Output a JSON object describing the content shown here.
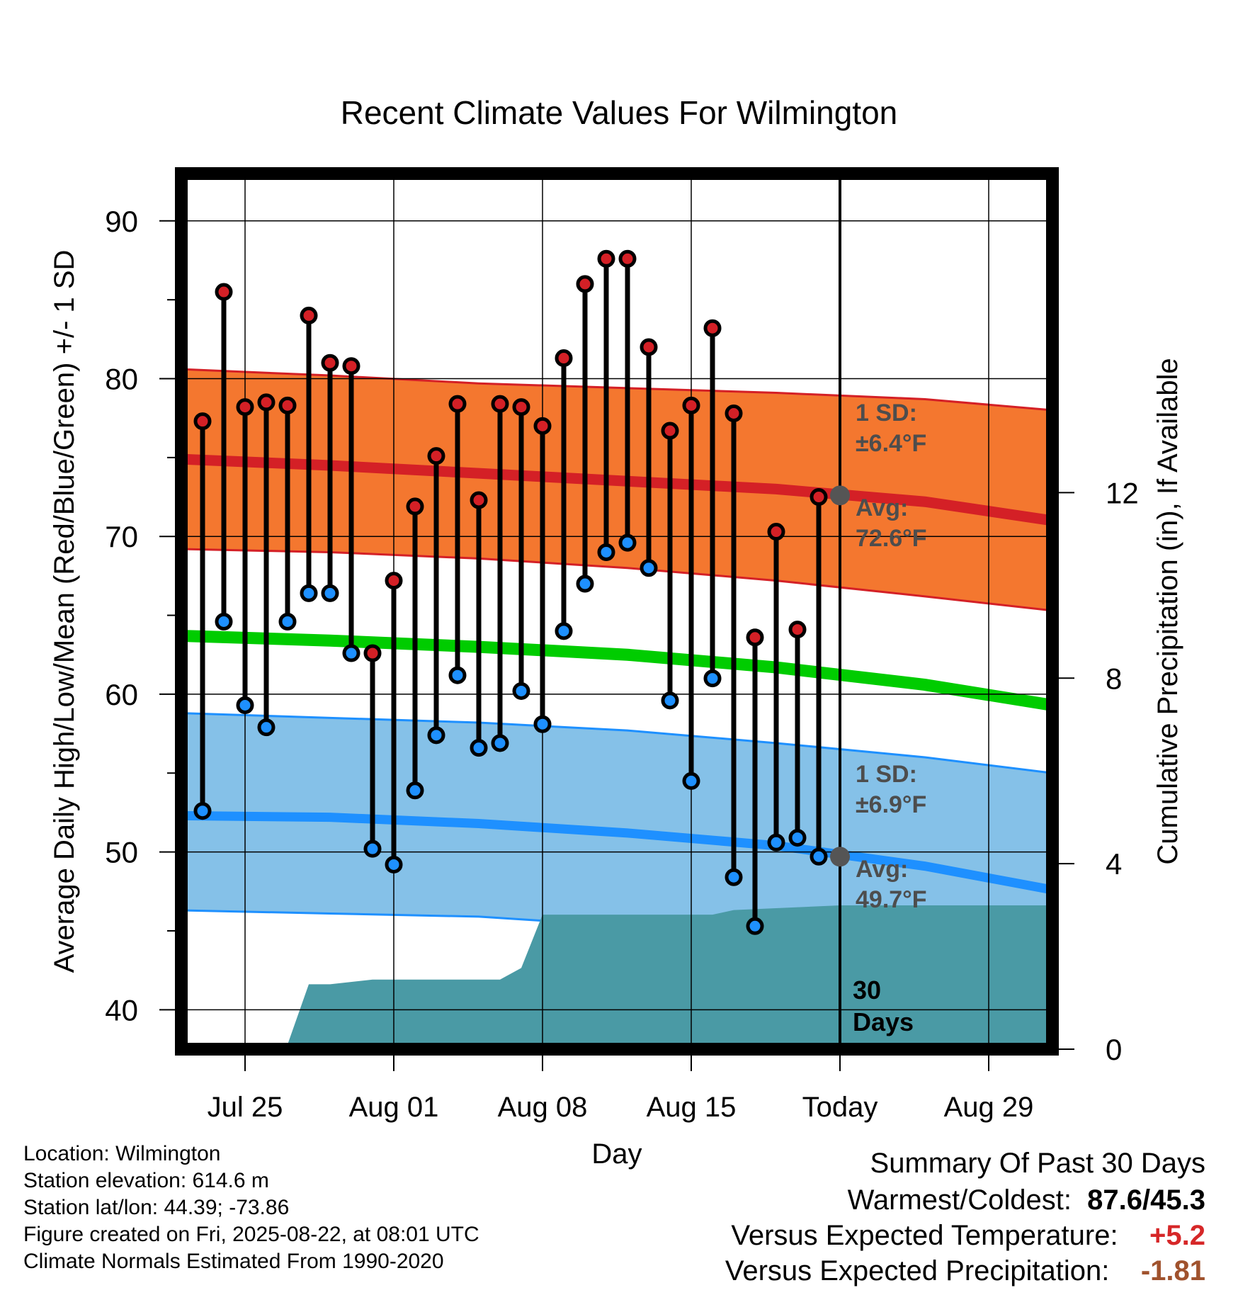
{
  "title": "Recent Climate Values For Wilmington",
  "info": {
    "location": "Location: Wilmington",
    "elevation": "Station elevation: 614.6 m",
    "latlon": "Station lat/lon: 44.39; -73.86",
    "created": "Figure created on Fri, 2025-08-22, at 08:01 UTC",
    "normals": "Climate Normals Estimated From 1990-2020"
  },
  "summary": {
    "heading": "Summary Of Past 30 Days",
    "warm_cold_label": "Warmest/Coldest:",
    "warm_cold_value": "87.6/45.3",
    "temp_label": "Versus Expected Temperature:",
    "temp_value": "+5.2",
    "precip_label": "Versus Expected Precipitation:",
    "precip_value": "-1.81"
  },
  "colors": {
    "high_band": "#f4772f",
    "high_mean": "#d42026",
    "low_band": "#85c1e8",
    "low_mean": "#1e90ff",
    "mean_line": "#00cc00",
    "precip": "#4a9aa5",
    "high_dot": "#d42026",
    "low_dot": "#1e90ff"
  },
  "chart_data": {
    "type": "line",
    "xlabel": "Day",
    "ylabel": "Average Daily High/Low/Mean (Red/Blue/Green) +/- 1 SD",
    "ylabel_right": "Cumulative Precipitation (in), If Available",
    "ylim": [
      37.5,
      93
    ],
    "ylim_right": [
      0,
      18.88
    ],
    "yticks": [
      40,
      50,
      60,
      70,
      80,
      90
    ],
    "yticks_right": [
      0,
      4,
      8,
      12
    ],
    "xlim": [
      "2025-07-22",
      "2025-09-01"
    ],
    "xticks": [
      {
        "date": "2025-07-25",
        "label": "Jul 25"
      },
      {
        "date": "2025-08-01",
        "label": "Aug 01"
      },
      {
        "date": "2025-08-08",
        "label": "Aug 08"
      },
      {
        "date": "2025-08-15",
        "label": "Aug 15"
      },
      {
        "date": "2025-08-22",
        "label": "Today"
      },
      {
        "date": "2025-08-29",
        "label": "Aug 29"
      }
    ],
    "today": "2025-08-22",
    "days_label": "30\nDays",
    "daily_obs": {
      "dates": [
        "2025-07-23",
        "2025-07-24",
        "2025-07-25",
        "2025-07-26",
        "2025-07-27",
        "2025-07-28",
        "2025-07-29",
        "2025-07-30",
        "2025-07-31",
        "2025-08-01",
        "2025-08-02",
        "2025-08-03",
        "2025-08-04",
        "2025-08-05",
        "2025-08-06",
        "2025-08-07",
        "2025-08-08",
        "2025-08-09",
        "2025-08-10",
        "2025-08-11",
        "2025-08-12",
        "2025-08-13",
        "2025-08-14",
        "2025-08-15",
        "2025-08-16",
        "2025-08-17",
        "2025-08-18",
        "2025-08-19",
        "2025-08-20",
        "2025-08-21"
      ],
      "high": [
        77.3,
        85.5,
        78.2,
        78.5,
        78.3,
        84.0,
        81.0,
        80.8,
        62.6,
        67.2,
        71.9,
        75.1,
        78.4,
        72.3,
        78.4,
        78.2,
        77.0,
        81.3,
        86.0,
        87.6,
        87.6,
        82.0,
        76.7,
        78.3,
        83.2,
        77.8,
        63.6,
        70.3,
        64.1,
        72.5
      ],
      "low": [
        52.6,
        64.6,
        59.3,
        57.9,
        64.6,
        66.4,
        66.4,
        62.6,
        50.2,
        49.2,
        53.9,
        57.4,
        61.2,
        56.6,
        56.9,
        60.2,
        58.1,
        64.0,
        67.0,
        69.0,
        69.6,
        68.0,
        59.6,
        54.5,
        61.0,
        48.4,
        45.3,
        50.6,
        50.9,
        49.7
      ]
    },
    "normals": {
      "dates": [
        "2025-07-22",
        "2025-07-29",
        "2025-08-05",
        "2025-08-12",
        "2025-08-19",
        "2025-08-26",
        "2025-09-01"
      ],
      "high_mean": [
        74.9,
        74.5,
        74.0,
        73.5,
        73.0,
        72.2,
        71.0
      ],
      "high_upper": [
        80.6,
        80.2,
        79.7,
        79.4,
        79.1,
        78.7,
        78.0
      ],
      "high_lower": [
        69.2,
        69.0,
        68.6,
        68.0,
        67.2,
        66.2,
        65.3
      ],
      "low_mean": [
        52.3,
        52.2,
        51.8,
        51.2,
        50.4,
        49.1,
        47.6
      ],
      "low_upper": [
        58.8,
        58.5,
        58.2,
        57.7,
        56.9,
        56.0,
        55.0
      ],
      "low_lower": [
        46.3,
        46.1,
        45.9,
        45.3,
        44.2,
        42.6,
        40.6
      ],
      "mean": [
        63.7,
        63.4,
        63.0,
        62.5,
        61.7,
        60.6,
        59.3
      ]
    },
    "today_markers": {
      "high_avg": 72.6,
      "low_avg": 49.7
    },
    "annotations": {
      "high_sd": "1 SD:\n±6.4°F",
      "high_avg": "Avg:\n72.6°F",
      "low_sd": "1 SD:\n±6.9°F",
      "low_avg": "Avg:\n49.7°F"
    },
    "precip": {
      "dates": [
        "2025-07-22",
        "2025-07-25",
        "2025-07-26",
        "2025-07-27",
        "2025-07-28",
        "2025-07-29",
        "2025-07-31",
        "2025-08-01",
        "2025-08-02",
        "2025-08-06",
        "2025-08-07",
        "2025-08-08",
        "2025-08-16",
        "2025-08-17",
        "2025-08-22",
        "2025-09-01"
      ],
      "cumulative": [
        0,
        0,
        0.1,
        0.1,
        1.4,
        1.4,
        1.5,
        1.5,
        1.5,
        1.5,
        1.75,
        2.9,
        2.9,
        3.0,
        3.1,
        3.1
      ]
    }
  }
}
